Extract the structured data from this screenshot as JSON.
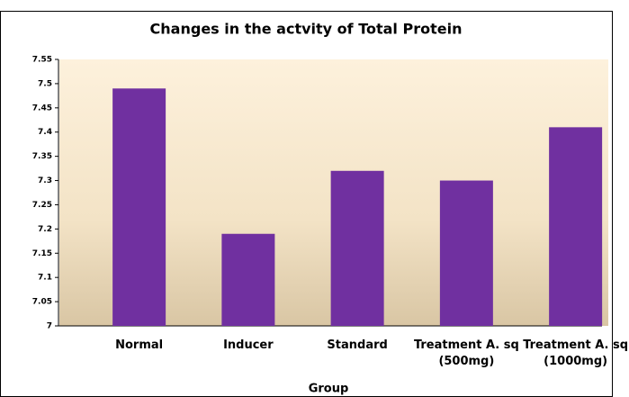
{
  "chart_data": {
    "type": "bar",
    "title": "Changes in the actvity of Total Protein",
    "x_label": "Group",
    "categories": [
      "Normal",
      "Inducer",
      "Standard",
      "Treatment A. sq (500mg)",
      "Treatment A. sq (1000mg)"
    ],
    "values": [
      7.49,
      7.19,
      7.32,
      7.3,
      7.41
    ],
    "color": "#7030a0",
    "ylim": [
      7,
      7.55
    ],
    "yticks": [
      7,
      7.05,
      7.1,
      7.15,
      7.2,
      7.25,
      7.3,
      7.35,
      7.4,
      7.45,
      7.5,
      7.55
    ]
  }
}
